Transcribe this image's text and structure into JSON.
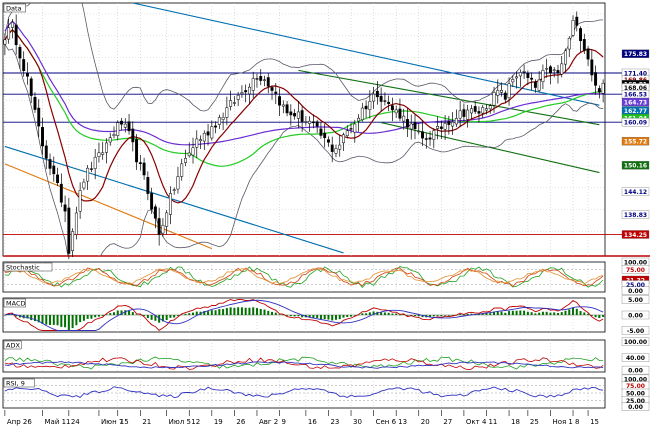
{
  "chart_data": {
    "type": "candlestick",
    "panels": {
      "price": {
        "title": "Data",
        "ylim": [
          129.3,
          187.5
        ]
      },
      "stochastic": {
        "title": "Stochastic",
        "ylim": [
          0,
          100
        ]
      },
      "macd": {
        "title": "MACD",
        "ylim": [
          -5.5,
          5.5
        ]
      },
      "adx": {
        "title": "ADX",
        "ylim": [
          0,
          100
        ]
      },
      "rsi": {
        "title": "RSI, 9",
        "ylim": [
          0,
          100
        ]
      }
    },
    "x_tick_labels": [
      {
        "i": 0,
        "label": "Апр 26"
      },
      {
        "i": 10,
        "label": "Май 11"
      },
      {
        "i": 17,
        "label": "24"
      },
      {
        "i": 25,
        "label": "Июн 7"
      },
      {
        "i": 30,
        "label": "15"
      },
      {
        "i": 36,
        "label": "21"
      },
      {
        "i": 43,
        "label": "Июл 5"
      },
      {
        "i": 49,
        "label": "12"
      },
      {
        "i": 55,
        "label": "19"
      },
      {
        "i": 61,
        "label": "26"
      },
      {
        "i": 67,
        "label": "Авг 2"
      },
      {
        "i": 73,
        "label": "9"
      },
      {
        "i": 80,
        "label": "16"
      },
      {
        "i": 86,
        "label": "23"
      },
      {
        "i": 92,
        "label": "30"
      },
      {
        "i": 98,
        "label": "Сен 6"
      },
      {
        "i": 104,
        "label": "13"
      },
      {
        "i": 110,
        "label": "20"
      },
      {
        "i": 116,
        "label": "27"
      },
      {
        "i": 122,
        "label": "Окт 4"
      },
      {
        "i": 128,
        "label": "11"
      },
      {
        "i": 134,
        "label": "18"
      },
      {
        "i": 139,
        "label": "25"
      },
      {
        "i": 145,
        "label": "Ноя 1"
      },
      {
        "i": 151,
        "label": "8"
      },
      {
        "i": 155,
        "label": "15"
      }
    ],
    "price_tags": [
      {
        "label": "175.83",
        "value": 175.83,
        "bg": "#000080",
        "fg": "#ffffff"
      },
      {
        "label": "171.40",
        "value": 171.4,
        "bg": "#ffffff",
        "fg": "#000080"
      },
      {
        "label": "169.86",
        "value": 169.86,
        "bg": "#ffffff",
        "fg": "#800000"
      },
      {
        "label": "168.81",
        "value": 168.81,
        "bg": "#000000",
        "fg": "#ffffff"
      },
      {
        "label": "168.06",
        "value": 168.06,
        "bg": "#ffffff",
        "fg": "#000000"
      },
      {
        "label": "166.53",
        "value": 166.53,
        "bg": "#ffffff",
        "fg": "#000080"
      },
      {
        "label": "164.73",
        "value": 164.73,
        "bg": "#6a3dd6",
        "fg": "#ffffff"
      },
      {
        "label": "162.77",
        "value": 162.77,
        "bg": "#0070b0",
        "fg": "#ffffff"
      },
      {
        "label": "161.04",
        "value": 161.04,
        "bg": "#20c020",
        "fg": "#ffffff"
      },
      {
        "label": "160.09",
        "value": 160.09,
        "bg": "#ffffff",
        "fg": "#000080"
      },
      {
        "label": "155.72",
        "value": 155.72,
        "bg": "#e07a10",
        "fg": "#ffffff"
      },
      {
        "label": "150.16",
        "value": 150.16,
        "bg": "#107010",
        "fg": "#ffffff"
      },
      {
        "label": "144.12",
        "value": 144.12,
        "bg": "#ffffff",
        "fg": "#000080"
      },
      {
        "label": "138.83",
        "value": 138.83,
        "bg": "#ffffff",
        "fg": "#000080"
      },
      {
        "label": "134.25",
        "value": 134.25,
        "bg": "#c00000",
        "fg": "#ffffff"
      }
    ],
    "stochastic_tags": [
      {
        "label": "100.00",
        "value": 100,
        "bg": "#ffffff",
        "fg": "#000000"
      },
      {
        "label": "75.00",
        "value": 75,
        "bg": "#ffffff",
        "fg": "#c00000"
      },
      {
        "label": "31.32",
        "value": 40,
        "bg": "#c00000",
        "fg": "#ffffff"
      },
      {
        "label": "25.00",
        "value": 25,
        "bg": "#ffffff",
        "fg": "#000080"
      },
      {
        "label": "0.00",
        "value": 4,
        "bg": "#ffffff",
        "fg": "#000000"
      }
    ],
    "macd_tags": [
      {
        "label": "5.00",
        "value": 5,
        "bg": "#ffffff",
        "fg": "#000000"
      },
      {
        "label": "0.00",
        "value": 0,
        "bg": "#ffffff",
        "fg": "#000000"
      },
      {
        "label": "-5.00",
        "value": -5,
        "bg": "#ffffff",
        "fg": "#000000"
      }
    ],
    "adx_tags": [
      {
        "label": "100.00",
        "value": 95,
        "bg": "#ffffff",
        "fg": "#000000"
      },
      {
        "label": "40.00",
        "value": 45,
        "bg": "#ffffff",
        "fg": "#000000"
      },
      {
        "label": "0.00",
        "value": 6,
        "bg": "#ffffff",
        "fg": "#000000"
      }
    ],
    "rsi_tags": [
      {
        "label": "100.00",
        "value": 97,
        "bg": "#ffffff",
        "fg": "#000000"
      },
      {
        "label": "75.00",
        "value": 75,
        "bg": "#ffffff",
        "fg": "#c00000"
      },
      {
        "label": "50.00",
        "value": 50,
        "bg": "#ffffff",
        "fg": "#000000"
      },
      {
        "label": "25.00",
        "value": 25,
        "bg": "#ffffff",
        "fg": "#000000"
      },
      {
        "label": "0.00",
        "value": 4,
        "bg": "#ffffff",
        "fg": "#000000"
      }
    ],
    "close_keypoints": [
      [
        0,
        180
      ],
      [
        2,
        182
      ],
      [
        4,
        176
      ],
      [
        6,
        170
      ],
      [
        8,
        162
      ],
      [
        10,
        155
      ],
      [
        12,
        150
      ],
      [
        14,
        145
      ],
      [
        16,
        140
      ],
      [
        17,
        131
      ],
      [
        19,
        140
      ],
      [
        21,
        147
      ],
      [
        23,
        150
      ],
      [
        25,
        152
      ],
      [
        27,
        155
      ],
      [
        29,
        158
      ],
      [
        31,
        160
      ],
      [
        33,
        157
      ],
      [
        35,
        152
      ],
      [
        37,
        147
      ],
      [
        39,
        141
      ],
      [
        41,
        134
      ],
      [
        43,
        140
      ],
      [
        45,
        145
      ],
      [
        47,
        150
      ],
      [
        49,
        153
      ],
      [
        51,
        156
      ],
      [
        53,
        157
      ],
      [
        55,
        159
      ],
      [
        57,
        161
      ],
      [
        59,
        163
      ],
      [
        61,
        165
      ],
      [
        63,
        167
      ],
      [
        65,
        169
      ],
      [
        67,
        171
      ],
      [
        69,
        170
      ],
      [
        71,
        168
      ],
      [
        73,
        165
      ],
      [
        75,
        162
      ],
      [
        77,
        162
      ],
      [
        79,
        161
      ],
      [
        81,
        160
      ],
      [
        83,
        158
      ],
      [
        85,
        156
      ],
      [
        87,
        154
      ],
      [
        89,
        155
      ],
      [
        91,
        158
      ],
      [
        93,
        160
      ],
      [
        95,
        163
      ],
      [
        97,
        165
      ],
      [
        99,
        167
      ],
      [
        101,
        165
      ],
      [
        103,
        163
      ],
      [
        105,
        162
      ],
      [
        107,
        160
      ],
      [
        109,
        158
      ],
      [
        111,
        156
      ],
      [
        113,
        157
      ],
      [
        115,
        158
      ],
      [
        117,
        160
      ],
      [
        119,
        161
      ],
      [
        121,
        162
      ],
      [
        123,
        163
      ],
      [
        125,
        162
      ],
      [
        127,
        163
      ],
      [
        129,
        165
      ],
      [
        131,
        167
      ],
      [
        133,
        166
      ],
      [
        135,
        170
      ],
      [
        137,
        172
      ],
      [
        139,
        170
      ],
      [
        141,
        168
      ],
      [
        143,
        171
      ],
      [
        145,
        172
      ],
      [
        147,
        171
      ],
      [
        149,
        176
      ],
      [
        151,
        183
      ],
      [
        153,
        180
      ],
      [
        155,
        175
      ],
      [
        157,
        168
      ]
    ],
    "series": [
      {
        "name": "Bollinger upper / lower",
        "color": "#5a5a6a"
      },
      {
        "name": "MA (dark red)",
        "color": "#8b0000"
      },
      {
        "name": "MA (green)",
        "color": "#22cc22"
      },
      {
        "name": "MA (purple)",
        "color": "#6a2ed2"
      }
    ],
    "trend_lines": [
      {
        "color": "#0070b0",
        "from": [
          34,
          187.5
        ],
        "to": [
          158,
          164.0
        ]
      },
      {
        "color": "#0070b0",
        "from": [
          0,
          154.5
        ],
        "to": [
          90,
          130.0
        ]
      },
      {
        "color": "#107010",
        "from": [
          78,
          172.0
        ],
        "to": [
          158,
          159.5
        ]
      },
      {
        "color": "#107010",
        "from": [
          100,
          160.0
        ],
        "to": [
          158,
          148.5
        ]
      },
      {
        "color": "#e07a10",
        "from": [
          0,
          150.5
        ],
        "to": [
          55,
          131.0
        ]
      }
    ],
    "horizontal_levels": [
      {
        "value": 171.4,
        "color": "#000080"
      },
      {
        "value": 166.53,
        "color": "#000080"
      },
      {
        "value": 160.09,
        "color": "#000080"
      },
      {
        "value": 134.25,
        "color": "#c00000"
      }
    ],
    "grid": true
  }
}
